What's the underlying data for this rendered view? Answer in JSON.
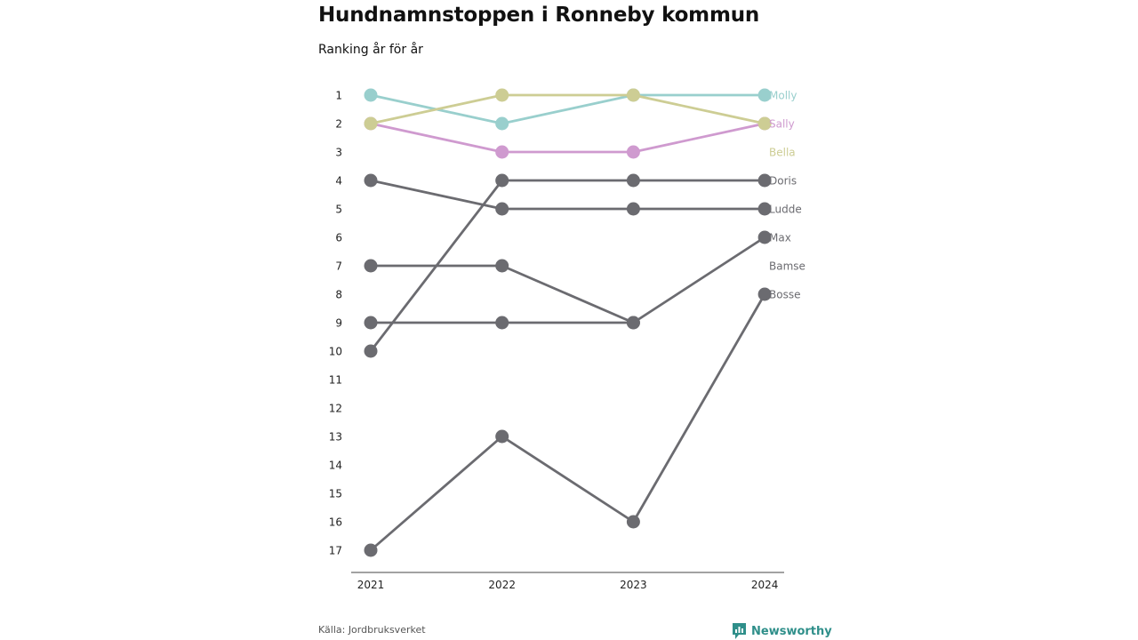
{
  "title": "Hundnamnstoppen i Ronneby kommun",
  "subtitle": "Ranking år för år",
  "source": "Källa: Jordbruksverket",
  "brand": "Newsworthy",
  "colors": {
    "Molly": "#99cfcd",
    "Sally": "#cf9acf",
    "Bella": "#cdcd94",
    "other": "#6b6b70",
    "axis": "#444444",
    "brand": "#2f8f8a"
  },
  "chart_data": {
    "type": "line",
    "x": [
      "2021",
      "2022",
      "2023",
      "2024"
    ],
    "y_ticks": [
      "1",
      "2",
      "3",
      "4",
      "5",
      "6",
      "7",
      "8",
      "9",
      "10",
      "11",
      "12",
      "13",
      "14",
      "15",
      "16",
      "17"
    ],
    "ylim": [
      1,
      17
    ],
    "y_inverted": true,
    "grid": false,
    "legend": "direct labels at right end",
    "series": [
      {
        "name": "Molly",
        "color": "#99cfcd",
        "values": [
          1,
          2,
          1,
          1
        ]
      },
      {
        "name": "Sally",
        "color": "#cf9acf",
        "values": [
          2,
          3,
          3,
          2
        ]
      },
      {
        "name": "Bella",
        "color": "#cdcd94",
        "values": [
          2,
          1,
          1,
          2
        ]
      },
      {
        "name": "Doris",
        "color": "#6b6b70",
        "values": [
          10,
          4,
          4,
          4
        ]
      },
      {
        "name": "Ludde",
        "color": "#6b6b70",
        "values": [
          4,
          5,
          5,
          5
        ]
      },
      {
        "name": "Max",
        "color": "#6b6b70",
        "values": [
          7,
          7,
          9,
          6
        ]
      },
      {
        "name": "Bamse",
        "color": "#6b6b70",
        "values": [
          9,
          9,
          9,
          null
        ]
      },
      {
        "name": "Bosse",
        "color": "#6b6b70",
        "values": [
          17,
          13,
          16,
          8
        ]
      }
    ],
    "end_labels": [
      {
        "name": "Molly",
        "rank": 1,
        "color": "#99cfcd"
      },
      {
        "name": "Sally",
        "rank": 2,
        "color": "#cf9acf"
      },
      {
        "name": "Bella",
        "rank": 3,
        "color": "#cdcd94"
      },
      {
        "name": "Doris",
        "rank": 4,
        "color": "#6b6b70"
      },
      {
        "name": "Ludde",
        "rank": 5,
        "color": "#6b6b70"
      },
      {
        "name": "Max",
        "rank": 6,
        "color": "#6b6b70"
      },
      {
        "name": "Bamse",
        "rank": 7,
        "color": "#6b6b70"
      },
      {
        "name": "Bosse",
        "rank": 8,
        "color": "#6b6b70"
      }
    ]
  }
}
